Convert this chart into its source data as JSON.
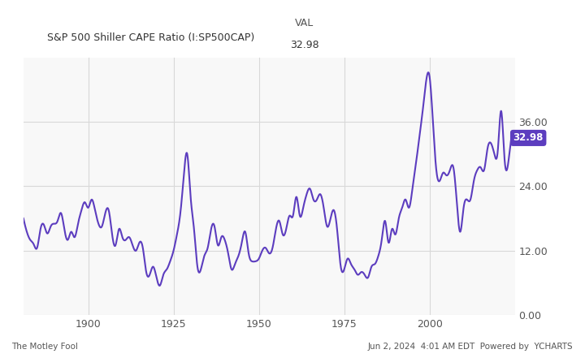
{
  "title_left": "S&P 500 Shiller CAPE Ratio (I:SP500CAP)",
  "title_col": "VAL",
  "title_val": "32.98",
  "line_color": "#5c3dbf",
  "label_color": "#5c3dbf",
  "background_color": "#f8f8f8",
  "grid_color": "#d8d8d8",
  "ylim": [
    0,
    48
  ],
  "yticks": [
    0.0,
    12.0,
    24.0,
    36.0
  ],
  "xlim_start": 1881,
  "xlim_end": 2025,
  "xticks": [
    1900,
    1925,
    1950,
    1975,
    2000
  ],
  "footer_left": "The Motley Fool",
  "footer_right": "Jun 2, 2024  4:01 AM EDT  Powered by  YCHARTS",
  "last_label": "32.98",
  "last_label_bg": "#5c3dbf",
  "last_label_color": "#ffffff"
}
